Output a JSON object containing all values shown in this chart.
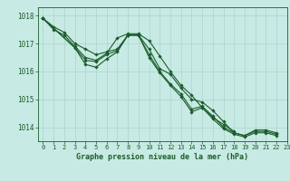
{
  "xlabel": "Graphe pression niveau de la mer (hPa)",
  "bg_color": "#c8eae4",
  "grid_color": "#aad4cc",
  "line_color": "#1a5c2a",
  "marker": "D",
  "marker_size": 1.8,
  "line_width": 0.8,
  "ylim": [
    1013.5,
    1018.3
  ],
  "xlim": [
    -0.5,
    23
  ],
  "yticks": [
    1014,
    1015,
    1016,
    1017,
    1018
  ],
  "xticks": [
    0,
    1,
    2,
    3,
    4,
    5,
    6,
    7,
    8,
    9,
    10,
    11,
    12,
    13,
    14,
    15,
    16,
    17,
    18,
    19,
    20,
    21,
    22,
    23
  ],
  "series": [
    [
      1017.9,
      1017.6,
      1017.4,
      1017.0,
      1016.8,
      1016.6,
      1016.7,
      1016.8,
      1017.3,
      1017.3,
      1016.8,
      1016.1,
      1015.9,
      1015.4,
      1015.0,
      1014.9,
      1014.6,
      1014.2,
      1013.8,
      1013.7,
      1013.9,
      1013.9,
      1013.8,
      null
    ],
    [
      1017.9,
      1017.5,
      1017.3,
      1016.9,
      1016.5,
      1016.4,
      1016.65,
      1017.2,
      1017.35,
      1017.35,
      1017.1,
      1016.55,
      1016.0,
      1015.5,
      1015.15,
      1014.7,
      1014.35,
      1014.1,
      1013.85,
      null,
      null,
      null,
      null,
      null
    ],
    [
      1017.9,
      null,
      null,
      1016.85,
      1016.4,
      1016.35,
      1016.6,
      1016.75,
      1017.3,
      1017.3,
      1016.6,
      1016.0,
      1015.55,
      1015.2,
      1014.65,
      1014.75,
      1014.4,
      1014.0,
      1013.8,
      1013.7,
      1013.85,
      1013.85,
      1013.75,
      null
    ],
    [
      1017.9,
      null,
      null,
      1016.85,
      1016.25,
      1016.15,
      1016.45,
      1016.7,
      1017.3,
      1017.3,
      1016.5,
      1015.95,
      1015.5,
      1015.1,
      1014.55,
      1014.7,
      1014.3,
      1013.95,
      1013.75,
      1013.65,
      1013.8,
      1013.8,
      1013.7,
      null
    ]
  ]
}
